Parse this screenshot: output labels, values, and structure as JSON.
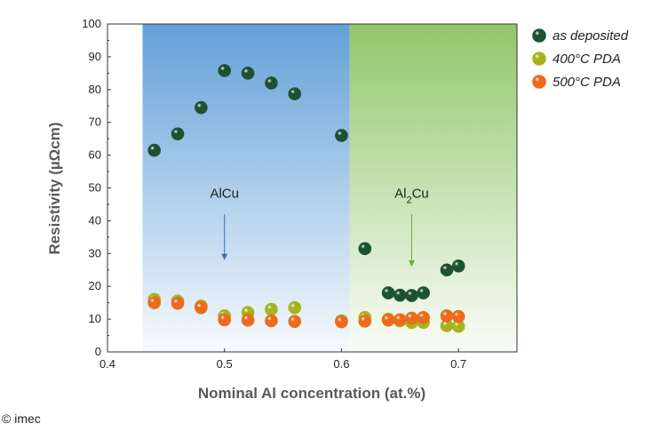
{
  "credit": "© imec",
  "chart_data": {
    "type": "scatter",
    "xlabel": "Nominal Al concentration (at.%)",
    "ylabel": "Resistivity (µΩcm)",
    "xlim": [
      0.4,
      0.75
    ],
    "ylim": [
      0,
      100
    ],
    "xticks": [
      "0.4",
      "0.5",
      "0.6",
      "0.7"
    ],
    "xtick_values": [
      0.4,
      0.5,
      0.6,
      0.7
    ],
    "yticks": [
      "0",
      "10",
      "20",
      "30",
      "40",
      "50",
      "60",
      "70",
      "80",
      "90",
      "100"
    ],
    "ytick_values": [
      0,
      10,
      20,
      30,
      40,
      50,
      60,
      70,
      80,
      90,
      100
    ],
    "grid": false,
    "legend_position": "outside-right",
    "regions": [
      {
        "label": "AlCu",
        "x_range": [
          0.43,
          0.607
        ],
        "color": "#5b9bd5",
        "annotation_x": 0.5,
        "arrow_from": 42,
        "arrow_to": 28
      },
      {
        "label_main": "Al",
        "label_sub": "2",
        "label_tail": "Cu",
        "x_range": [
          0.607,
          0.75
        ],
        "color": "#8dc465",
        "annotation_x": 0.66,
        "arrow_from": 42,
        "arrow_to": 26
      }
    ],
    "series": [
      {
        "name": "as deposited",
        "color": "#1d5230",
        "x": [
          0.44,
          0.46,
          0.48,
          0.5,
          0.52,
          0.54,
          0.56,
          0.6,
          0.62,
          0.64,
          0.65,
          0.66,
          0.67,
          0.69,
          0.7
        ],
        "y": [
          61.5,
          66.5,
          74.5,
          85.8,
          85.0,
          82.0,
          78.7,
          66.0,
          31.5,
          18.0,
          17.3,
          17.2,
          18.0,
          25.0,
          26.2
        ]
      },
      {
        "name": "400°C PDA",
        "color": "#a5b41c",
        "x": [
          0.44,
          0.46,
          0.48,
          0.5,
          0.52,
          0.54,
          0.56,
          0.6,
          0.62,
          0.64,
          0.65,
          0.66,
          0.67,
          0.69,
          0.7
        ],
        "y": [
          16.0,
          15.5,
          14.0,
          11.0,
          12.0,
          13.0,
          13.5,
          9.5,
          10.5,
          10.0,
          9.5,
          9.0,
          9.0,
          8.0,
          7.8
        ]
      },
      {
        "name": "500°C PDA",
        "color": "#ee6a1c",
        "x": [
          0.44,
          0.46,
          0.48,
          0.5,
          0.52,
          0.54,
          0.56,
          0.6,
          0.62,
          0.64,
          0.65,
          0.66,
          0.67,
          0.69,
          0.7
        ],
        "y": [
          15.0,
          14.8,
          13.5,
          9.8,
          9.7,
          9.5,
          9.3,
          9.2,
          9.4,
          9.7,
          9.8,
          10.3,
          10.5,
          11.0,
          10.8
        ]
      }
    ]
  }
}
